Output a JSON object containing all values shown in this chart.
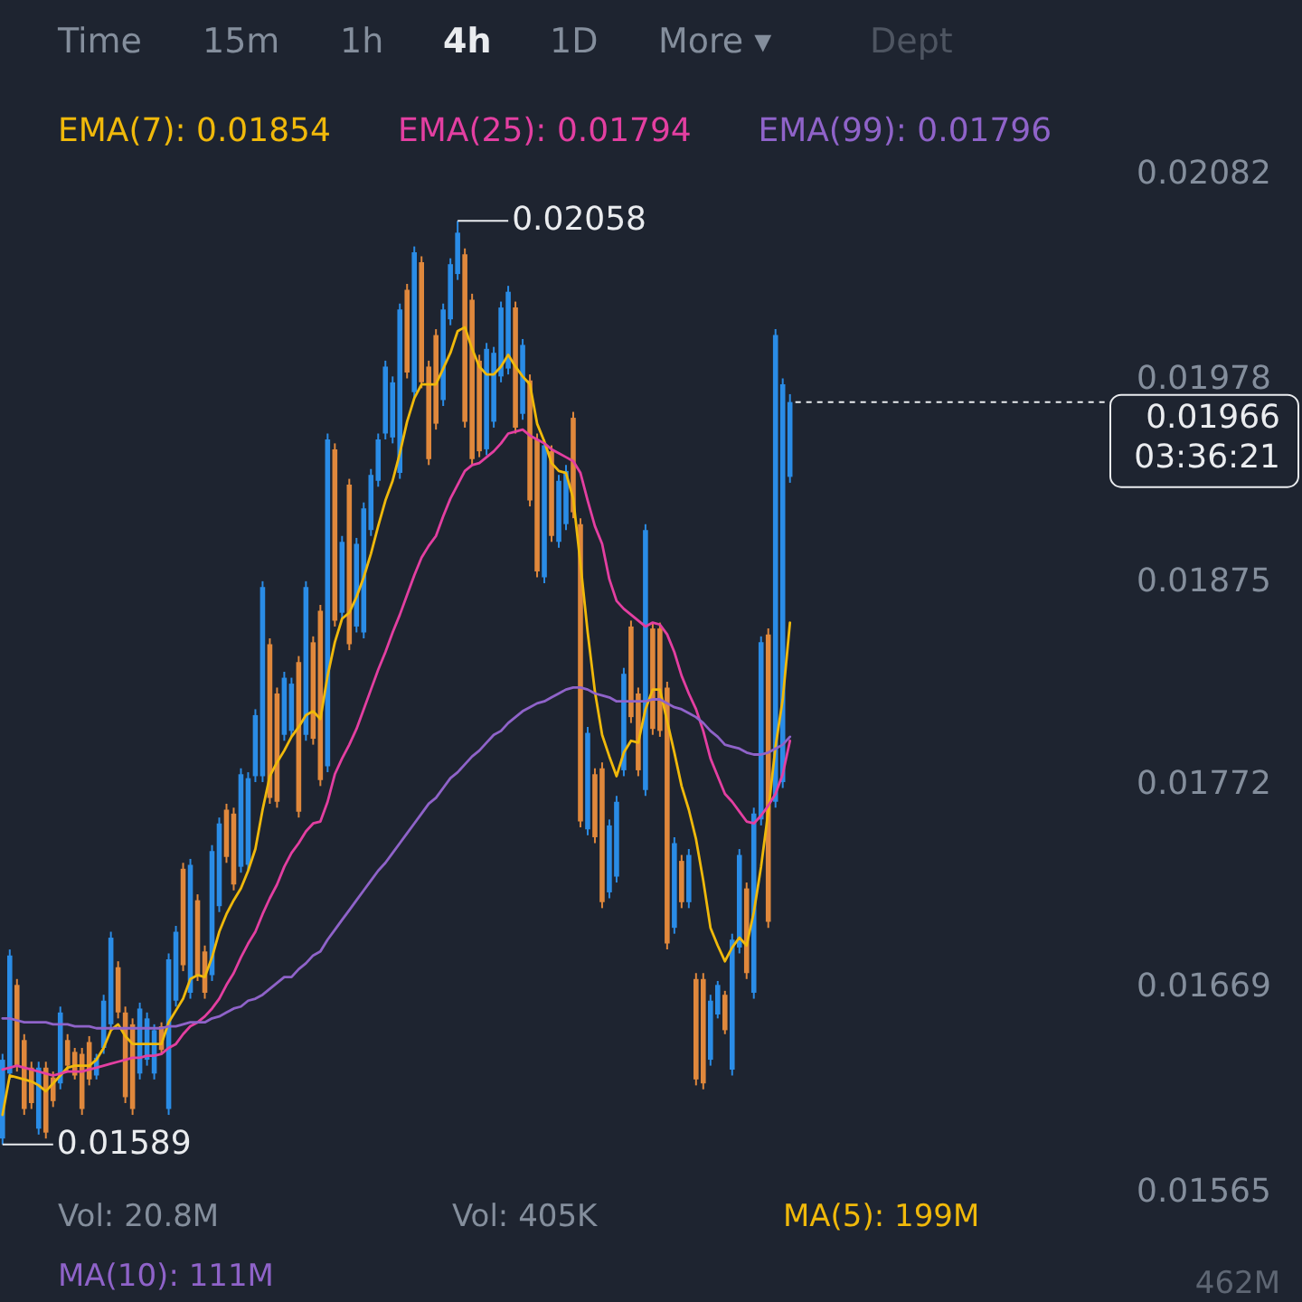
{
  "chart_data": {
    "type": "candlestick",
    "categories": [
      null,
      null,
      null,
      null,
      null,
      null,
      null,
      null,
      null,
      null,
      null,
      null,
      null,
      null,
      null,
      null,
      null,
      null,
      null,
      null,
      null,
      null,
      null,
      null,
      null,
      null,
      null,
      null,
      null,
      null,
      null,
      null,
      null,
      null,
      null,
      null,
      null,
      null,
      null,
      null,
      null,
      null,
      null,
      null,
      null,
      null,
      null,
      null,
      null,
      null,
      null,
      null,
      null,
      null,
      null,
      null,
      null,
      null,
      null,
      null,
      null,
      null,
      null,
      null,
      null,
      null,
      null,
      null,
      null,
      null,
      null,
      null,
      null,
      null,
      null,
      null,
      null,
      null,
      null,
      null,
      null,
      null,
      null,
      null,
      null,
      null,
      null,
      null,
      null,
      null,
      null,
      null,
      null,
      null,
      null,
      null,
      null,
      null,
      null,
      null,
      null,
      null,
      null,
      null,
      null,
      null,
      null,
      null,
      null,
      null,
      null,
      null,
      null,
      null,
      null,
      null,
      null,
      null,
      null,
      null,
      null,
      null,
      null,
      null,
      null,
      null,
      null,
      null,
      null,
      null,
      null,
      null,
      null,
      null,
      null,
      null,
      null,
      null,
      null,
      null,
      null,
      null,
      null,
      null,
      null,
      null,
      null,
      null,
      null,
      null,
      null,
      null,
      null,
      null,
      null,
      null,
      null
    ],
    "ohlc": [
      [
        0.01592,
        0.01635,
        0.01589,
        0.01632
      ],
      [
        0.01625,
        0.01688,
        0.01622,
        0.01685
      ],
      [
        0.0167,
        0.01673,
        0.01626,
        0.01629
      ],
      [
        0.01642,
        0.01645,
        0.01604,
        0.01607
      ],
      [
        0.01628,
        0.01631,
        0.01607,
        0.0161
      ],
      [
        0.01597,
        0.01631,
        0.01594,
        0.01628
      ],
      [
        0.01628,
        0.01631,
        0.01592,
        0.01595
      ],
      [
        0.01623,
        0.01626,
        0.01608,
        0.01611
      ],
      [
        0.0162,
        0.01659,
        0.01617,
        0.01656
      ],
      [
        0.01642,
        0.01645,
        0.01626,
        0.01629
      ],
      [
        0.01636,
        0.01638,
        0.01622,
        0.01624
      ],
      [
        0.01635,
        0.01638,
        0.01604,
        0.01607
      ],
      [
        0.01641,
        0.01644,
        0.01619,
        0.01622
      ],
      [
        0.01624,
        0.01635,
        0.01622,
        0.01633
      ],
      [
        0.01638,
        0.01665,
        0.01635,
        0.01662
      ],
      [
        0.0165,
        0.01697,
        0.01647,
        0.01694
      ],
      [
        0.01679,
        0.01682,
        0.01653,
        0.01656
      ],
      [
        0.01656,
        0.01659,
        0.0161,
        0.01613
      ],
      [
        0.0165,
        0.01653,
        0.01604,
        0.01607
      ],
      [
        0.01625,
        0.01661,
        0.01622,
        0.01658
      ],
      [
        0.01632,
        0.01656,
        0.01629,
        0.01653
      ],
      [
        0.01625,
        0.0165,
        0.01622,
        0.01647
      ],
      [
        0.01649,
        0.01651,
        0.01635,
        0.01637
      ],
      [
        0.01607,
        0.01686,
        0.01604,
        0.01683
      ],
      [
        0.01662,
        0.017,
        0.01659,
        0.01697
      ],
      [
        0.01729,
        0.01732,
        0.01677,
        0.0168
      ],
      [
        0.01666,
        0.01734,
        0.01663,
        0.01731
      ],
      [
        0.01713,
        0.01716,
        0.01672,
        0.01675
      ],
      [
        0.01687,
        0.0169,
        0.01663,
        0.01666
      ],
      [
        0.01675,
        0.01741,
        0.01672,
        0.01738
      ],
      [
        0.0171,
        0.01755,
        0.01707,
        0.01752
      ],
      [
        0.01759,
        0.01762,
        0.01732,
        0.01735
      ],
      [
        0.01757,
        0.0176,
        0.01718,
        0.01721
      ],
      [
        0.0173,
        0.0178,
        0.01727,
        0.01777
      ],
      [
        0.01731,
        0.01778,
        0.01728,
        0.01775
      ],
      [
        0.01776,
        0.0181,
        0.01773,
        0.01807
      ],
      [
        0.01776,
        0.01875,
        0.01773,
        0.01872
      ],
      [
        0.01843,
        0.01846,
        0.01762,
        0.01765
      ],
      [
        0.01818,
        0.01821,
        0.0176,
        0.01763
      ],
      [
        0.01797,
        0.01829,
        0.01794,
        0.01826
      ],
      [
        0.01799,
        0.01826,
        0.01796,
        0.01823
      ],
      [
        0.01834,
        0.01837,
        0.01755,
        0.01758
      ],
      [
        0.01797,
        0.01875,
        0.01794,
        0.01872
      ],
      [
        0.01844,
        0.01847,
        0.01792,
        0.01795
      ],
      [
        0.0186,
        0.01863,
        0.01771,
        0.01774
      ],
      [
        0.01781,
        0.0195,
        0.01778,
        0.01947
      ],
      [
        0.01942,
        0.01945,
        0.01852,
        0.01855
      ],
      [
        0.01859,
        0.01898,
        0.01856,
        0.01895
      ],
      [
        0.01924,
        0.01927,
        0.0184,
        0.01843
      ],
      [
        0.01852,
        0.01897,
        0.01849,
        0.01894
      ],
      [
        0.01849,
        0.01915,
        0.01846,
        0.01912
      ],
      [
        0.01901,
        0.01932,
        0.01898,
        0.01929
      ],
      [
        0.01926,
        0.0195,
        0.01923,
        0.01947
      ],
      [
        0.0195,
        0.01987,
        0.01947,
        0.01984
      ],
      [
        0.01948,
        0.01979,
        0.01945,
        0.01976
      ],
      [
        0.0193,
        0.02016,
        0.01927,
        0.02013
      ],
      [
        0.02023,
        0.02026,
        0.01978,
        0.01981
      ],
      [
        0.01971,
        0.02045,
        0.01968,
        0.02042
      ],
      [
        0.02037,
        0.0204,
        0.01973,
        0.01976
      ],
      [
        0.01984,
        0.01987,
        0.01934,
        0.01937
      ],
      [
        0.02,
        0.02003,
        0.01952,
        0.01955
      ],
      [
        0.01967,
        0.02016,
        0.01964,
        0.02013
      ],
      [
        0.02008,
        0.02039,
        0.02005,
        0.02036
      ],
      [
        0.02031,
        0.02058,
        0.02028,
        0.02052
      ],
      [
        0.02041,
        0.02044,
        0.01953,
        0.01956
      ],
      [
        0.02018,
        0.02021,
        0.01934,
        0.01937
      ],
      [
        0.01987,
        0.0199,
        0.01938,
        0.01941
      ],
      [
        0.01942,
        0.01996,
        0.01939,
        0.01993
      ],
      [
        0.01956,
        0.01994,
        0.01953,
        0.01991
      ],
      [
        0.01979,
        0.02017,
        0.01976,
        0.02014
      ],
      [
        0.01983,
        0.02025,
        0.0198,
        0.02022
      ],
      [
        0.02014,
        0.02017,
        0.0195,
        0.01953
      ],
      [
        0.0196,
        0.01998,
        0.01957,
        0.01995
      ],
      [
        0.01977,
        0.0198,
        0.01913,
        0.01916
      ],
      [
        0.01947,
        0.0195,
        0.01877,
        0.0188
      ],
      [
        0.01877,
        0.01947,
        0.01874,
        0.01944
      ],
      [
        0.01941,
        0.01944,
        0.01895,
        0.01898
      ],
      [
        0.01895,
        0.01929,
        0.01892,
        0.01926
      ],
      [
        0.01904,
        0.01934,
        0.01901,
        0.01931
      ],
      [
        0.01958,
        0.01961,
        0.01907,
        0.0191
      ],
      [
        0.01904,
        0.01907,
        0.0175,
        0.01753
      ],
      [
        0.01749,
        0.01801,
        0.01746,
        0.01798
      ],
      [
        0.01777,
        0.0178,
        0.01742,
        0.01745
      ],
      [
        0.0178,
        0.01783,
        0.01709,
        0.01712
      ],
      [
        0.01717,
        0.01754,
        0.01714,
        0.01751
      ],
      [
        0.01725,
        0.01766,
        0.01722,
        0.01763
      ],
      [
        0.01779,
        0.01831,
        0.01776,
        0.01828
      ],
      [
        0.01852,
        0.01855,
        0.01803,
        0.01806
      ],
      [
        0.01818,
        0.01821,
        0.01776,
        0.01779
      ],
      [
        0.01769,
        0.01904,
        0.01766,
        0.01901
      ],
      [
        0.01851,
        0.01854,
        0.01797,
        0.018
      ],
      [
        0.01851,
        0.01854,
        0.01796,
        0.01799
      ],
      [
        0.01821,
        0.01824,
        0.01688,
        0.01691
      ],
      [
        0.01699,
        0.01745,
        0.01696,
        0.01742
      ],
      [
        0.01733,
        0.01736,
        0.01709,
        0.01712
      ],
      [
        0.01712,
        0.01739,
        0.01709,
        0.01736
      ],
      [
        0.01673,
        0.01676,
        0.01619,
        0.01622
      ],
      [
        0.01673,
        0.01676,
        0.01617,
        0.0162
      ],
      [
        0.01632,
        0.01665,
        0.01629,
        0.01662
      ],
      [
        0.01655,
        0.01672,
        0.01653,
        0.0167
      ],
      [
        0.01665,
        0.01667,
        0.01645,
        0.01647
      ],
      [
        0.01627,
        0.01696,
        0.01624,
        0.01693
      ],
      [
        0.01689,
        0.01739,
        0.01686,
        0.01736
      ],
      [
        0.01719,
        0.01722,
        0.01673,
        0.01676
      ],
      [
        0.01666,
        0.0176,
        0.01663,
        0.01757
      ],
      [
        0.01754,
        0.01847,
        0.01751,
        0.01844
      ],
      [
        0.01848,
        0.01851,
        0.01699,
        0.01702
      ],
      [
        0.01763,
        0.02003,
        0.0176,
        0.02
      ],
      [
        0.01773,
        0.01978,
        0.0177,
        0.01975
      ],
      [
        0.01928,
        0.0197,
        0.01925,
        0.01966
      ],
      null,
      null,
      null,
      null,
      null,
      null,
      null,
      null,
      null,
      null,
      null,
      null,
      null,
      null,
      null,
      null,
      null,
      null,
      null,
      null,
      null,
      null,
      null,
      null,
      null,
      null,
      null,
      null,
      null,
      null,
      null,
      null,
      null,
      null,
      null,
      null,
      null,
      null,
      null,
      null,
      null,
      null,
      null,
      null,
      null,
      null,
      null
    ],
    "colors": [
      "#2a8ce6",
      "#2a8ce6",
      "#e0883c",
      "#e0883c",
      "#e0883c",
      "#2a8ce6",
      "#e0883c",
      "#e0883c",
      "#2a8ce6",
      "#e0883c",
      "#e0883c",
      "#e0883c",
      "#e0883c",
      "#2a8ce6",
      "#2a8ce6",
      "#2a8ce6",
      "#e0883c",
      "#e0883c",
      "#e0883c",
      "#2a8ce6",
      "#2a8ce6",
      "#2a8ce6",
      "#e0883c",
      "#2a8ce6",
      "#2a8ce6",
      "#e0883c",
      "#2a8ce6",
      "#e0883c",
      "#e0883c",
      "#2a8ce6",
      "#2a8ce6",
      "#e0883c",
      "#e0883c",
      "#2a8ce6",
      "#2a8ce6",
      "#2a8ce6",
      "#2a8ce6",
      "#e0883c",
      "#e0883c",
      "#2a8ce6",
      "#2a8ce6",
      "#e0883c",
      "#2a8ce6",
      "#e0883c",
      "#e0883c",
      "#2a8ce6",
      "#e0883c",
      "#2a8ce6",
      "#e0883c",
      "#2a8ce6",
      "#2a8ce6",
      "#2a8ce6",
      "#2a8ce6",
      "#2a8ce6",
      "#2a8ce6",
      "#2a8ce6",
      "#e0883c",
      "#2a8ce6",
      "#e0883c",
      "#e0883c",
      "#e0883c",
      "#2a8ce6",
      "#2a8ce6",
      "#2a8ce6",
      "#e0883c",
      "#e0883c",
      "#e0883c",
      "#2a8ce6",
      "#2a8ce6",
      "#2a8ce6",
      "#2a8ce6",
      "#e0883c",
      "#2a8ce6",
      "#e0883c",
      "#e0883c",
      "#2a8ce6",
      "#e0883c",
      "#2a8ce6",
      "#2a8ce6",
      "#e0883c",
      "#e0883c",
      "#2a8ce6",
      "#e0883c",
      "#e0883c",
      "#2a8ce6",
      "#2a8ce6",
      "#2a8ce6",
      "#e0883c",
      "#e0883c",
      "#2a8ce6",
      "#e0883c",
      "#e0883c",
      "#e0883c",
      "#2a8ce6",
      "#e0883c",
      "#2a8ce6",
      "#e0883c",
      "#e0883c",
      "#2a8ce6",
      "#2a8ce6",
      "#e0883c",
      "#2a8ce6",
      "#2a8ce6",
      "#e0883c",
      "#2a8ce6",
      "#2a8ce6",
      "#e0883c",
      "#2a8ce6",
      "#2a8ce6",
      "#2a8ce6",
      null,
      null,
      null,
      null,
      null,
      null,
      null,
      null,
      null,
      null,
      null,
      null,
      null,
      null,
      null,
      null,
      null,
      null,
      null,
      null,
      null,
      null,
      null,
      null,
      null,
      null,
      null,
      null,
      null,
      null,
      null,
      null,
      null,
      null,
      null,
      null,
      null,
      null,
      null,
      null,
      null,
      null,
      null,
      null,
      null,
      null,
      null
    ],
    "series": [
      {
        "name": "EMA(7): 0.01854",
        "type": "line",
        "color": "#f0b90b",
        "values": [
          0.01604,
          0.01624,
          0.01623,
          0.01622,
          0.01621,
          0.01619,
          0.01616,
          0.0162,
          0.01624,
          0.01628,
          0.01629,
          0.01629,
          0.01629,
          0.01632,
          0.01638,
          0.01647,
          0.0165,
          0.01644,
          0.0164,
          0.0164,
          0.0164,
          0.0164,
          0.0164,
          0.01651,
          0.01657,
          0.01663,
          0.01673,
          0.01675,
          0.01674,
          0.01684,
          0.01697,
          0.01706,
          0.01713,
          0.01719,
          0.01728,
          0.01739,
          0.01759,
          0.01776,
          0.01783,
          0.01789,
          0.01796,
          0.01801,
          0.01807,
          0.01809,
          0.01805,
          0.01827,
          0.01844,
          0.01856,
          0.01859,
          0.01867,
          0.01877,
          0.01889,
          0.01903,
          0.01916,
          0.01926,
          0.0194,
          0.01956,
          0.01968,
          0.01975,
          0.01975,
          0.01975,
          0.01983,
          0.01991,
          0.02002,
          0.02004,
          0.01993,
          0.01984,
          0.0198,
          0.0198,
          0.01984,
          0.0199,
          0.01984,
          0.01979,
          0.01975,
          0.01955,
          0.01946,
          0.01935,
          0.01931,
          0.0193,
          0.01917,
          0.01884,
          0.01849,
          0.01819,
          0.01797,
          0.01786,
          0.01776,
          0.01788,
          0.01794,
          0.01793,
          0.0181,
          0.0182,
          0.0182,
          0.01804,
          0.01788,
          0.01771,
          0.01759,
          0.01744,
          0.01723,
          0.01699,
          0.0169,
          0.01682,
          0.01689,
          0.01694,
          0.0169,
          0.01707,
          0.0173,
          0.01758,
          0.01791,
          0.01815,
          0.01854,
          null,
          null,
          null,
          null,
          null,
          null,
          null,
          null,
          null,
          null,
          null,
          null,
          null,
          null,
          null,
          null,
          null,
          null,
          null,
          null,
          null,
          null,
          null,
          null,
          null,
          null,
          null,
          null,
          null,
          null,
          null,
          null,
          null,
          null,
          null,
          null,
          null,
          null,
          null,
          null,
          null,
          null,
          null,
          null,
          null,
          null,
          null
        ]
      },
      {
        "name": "EMA(25): 0.01794",
        "type": "line",
        "color": "#e33fa1",
        "values": [
          0.01627,
          0.01628,
          0.01629,
          0.01628,
          0.01627,
          0.01626,
          0.01625,
          0.01624,
          0.01625,
          0.01626,
          0.01626,
          0.01626,
          0.01627,
          0.01628,
          0.01629,
          0.0163,
          0.01631,
          0.01632,
          0.01633,
          0.01633,
          0.01634,
          0.01634,
          0.01635,
          0.01638,
          0.0164,
          0.01645,
          0.01649,
          0.01651,
          0.01654,
          0.01658,
          0.01663,
          0.0167,
          0.01676,
          0.01684,
          0.01691,
          0.01697,
          0.01706,
          0.01714,
          0.01721,
          0.0173,
          0.01737,
          0.01742,
          0.01748,
          0.01752,
          0.01753,
          0.01763,
          0.01777,
          0.01785,
          0.01792,
          0.018,
          0.0181,
          0.0182,
          0.0183,
          0.01839,
          0.01849,
          0.01858,
          0.01868,
          0.01878,
          0.01887,
          0.01893,
          0.01898,
          0.01908,
          0.01917,
          0.01924,
          0.01931,
          0.01934,
          0.01935,
          0.01938,
          0.01941,
          0.01945,
          0.0195,
          0.01951,
          0.01952,
          0.01949,
          0.01947,
          0.01945,
          0.01942,
          0.0194,
          0.01938,
          0.01936,
          0.0193,
          0.01916,
          0.01903,
          0.01894,
          0.01876,
          0.01865,
          0.01861,
          0.01858,
          0.01855,
          0.01852,
          0.01854,
          0.01853,
          0.01848,
          0.01839,
          0.01827,
          0.01818,
          0.0181,
          0.01799,
          0.01785,
          0.01776,
          0.01767,
          0.01763,
          0.01758,
          0.01753,
          0.01752,
          0.01756,
          0.01761,
          0.01767,
          0.01777,
          0.01794,
          null,
          null,
          null,
          null,
          null,
          null,
          null,
          null,
          null,
          null,
          null,
          null,
          null,
          null,
          null,
          null,
          null,
          null,
          null,
          null,
          null,
          null,
          null,
          null,
          null,
          null,
          null,
          null,
          null,
          null,
          null,
          null,
          null,
          null,
          null,
          null,
          null,
          null,
          null,
          null,
          null,
          null,
          null,
          null,
          null,
          null,
          null
        ]
      },
      {
        "name": "EMA(99): 0.01796",
        "type": "line",
        "color": "#8f63c9",
        "values": [
          0.01653,
          0.01653,
          0.01652,
          0.01651,
          0.01651,
          0.01651,
          0.01651,
          0.0165,
          0.0165,
          0.0165,
          0.01649,
          0.01649,
          0.01649,
          0.01648,
          0.01648,
          0.01648,
          0.01648,
          0.01648,
          0.01648,
          0.01648,
          0.01648,
          0.01648,
          0.01648,
          0.01649,
          0.01649,
          0.0165,
          0.01651,
          0.01651,
          0.01651,
          0.01653,
          0.01654,
          0.01656,
          0.01658,
          0.01659,
          0.01662,
          0.01663,
          0.01665,
          0.01668,
          0.01671,
          0.01674,
          0.01674,
          0.01678,
          0.01681,
          0.01685,
          0.01687,
          0.01693,
          0.01698,
          0.01703,
          0.01708,
          0.01713,
          0.01718,
          0.01723,
          0.01728,
          0.01732,
          0.01737,
          0.01742,
          0.01747,
          0.01752,
          0.01757,
          0.01762,
          0.01765,
          0.0177,
          0.01775,
          0.01778,
          0.01782,
          0.01786,
          0.01789,
          0.01793,
          0.01797,
          0.01799,
          0.01803,
          0.01806,
          0.01809,
          0.01811,
          0.01813,
          0.01814,
          0.01816,
          0.01818,
          0.0182,
          0.01821,
          0.01821,
          0.0182,
          0.01818,
          0.01817,
          0.01816,
          0.01814,
          0.01814,
          0.01814,
          0.01814,
          0.01814,
          0.01815,
          0.01815,
          0.01813,
          0.01811,
          0.0181,
          0.01808,
          0.01806,
          0.01803,
          0.01799,
          0.01796,
          0.01792,
          0.01791,
          0.0179,
          0.01788,
          0.01787,
          0.01787,
          0.01788,
          0.0179,
          0.01792,
          0.01796,
          null,
          null,
          null,
          null,
          null,
          null,
          null,
          null,
          null,
          null,
          null,
          null,
          null,
          null,
          null,
          null,
          null,
          null,
          null,
          null,
          null,
          null,
          null,
          null,
          null,
          null,
          null,
          null,
          null,
          null,
          null,
          null,
          null,
          null,
          null,
          null,
          null,
          null,
          null,
          null,
          null,
          null,
          null,
          null,
          null,
          null,
          null
        ]
      }
    ],
    "ylim": [
      0.01565,
      0.02082
    ],
    "yticks": [
      0.01565,
      0.01669,
      0.01772,
      0.01875,
      0.01978,
      0.02082
    ],
    "tick_labels": "y",
    "ref_lines": [
      {
        "axis": "y",
        "value": 0.01966,
        "label": "0.01966\n03:36:21",
        "color": "#eaecef",
        "line_style": "dashed"
      }
    ],
    "annotations": [
      "Time",
      "15m",
      "1h",
      "4h",
      "1D",
      "More ▾",
      "Dept",
      "0.02058",
      "0.01589",
      "Vol: 20.8M",
      "Vol: 405K",
      "MA(5): 199M",
      "MA(10): 111M",
      "462M"
    ]
  }
}
